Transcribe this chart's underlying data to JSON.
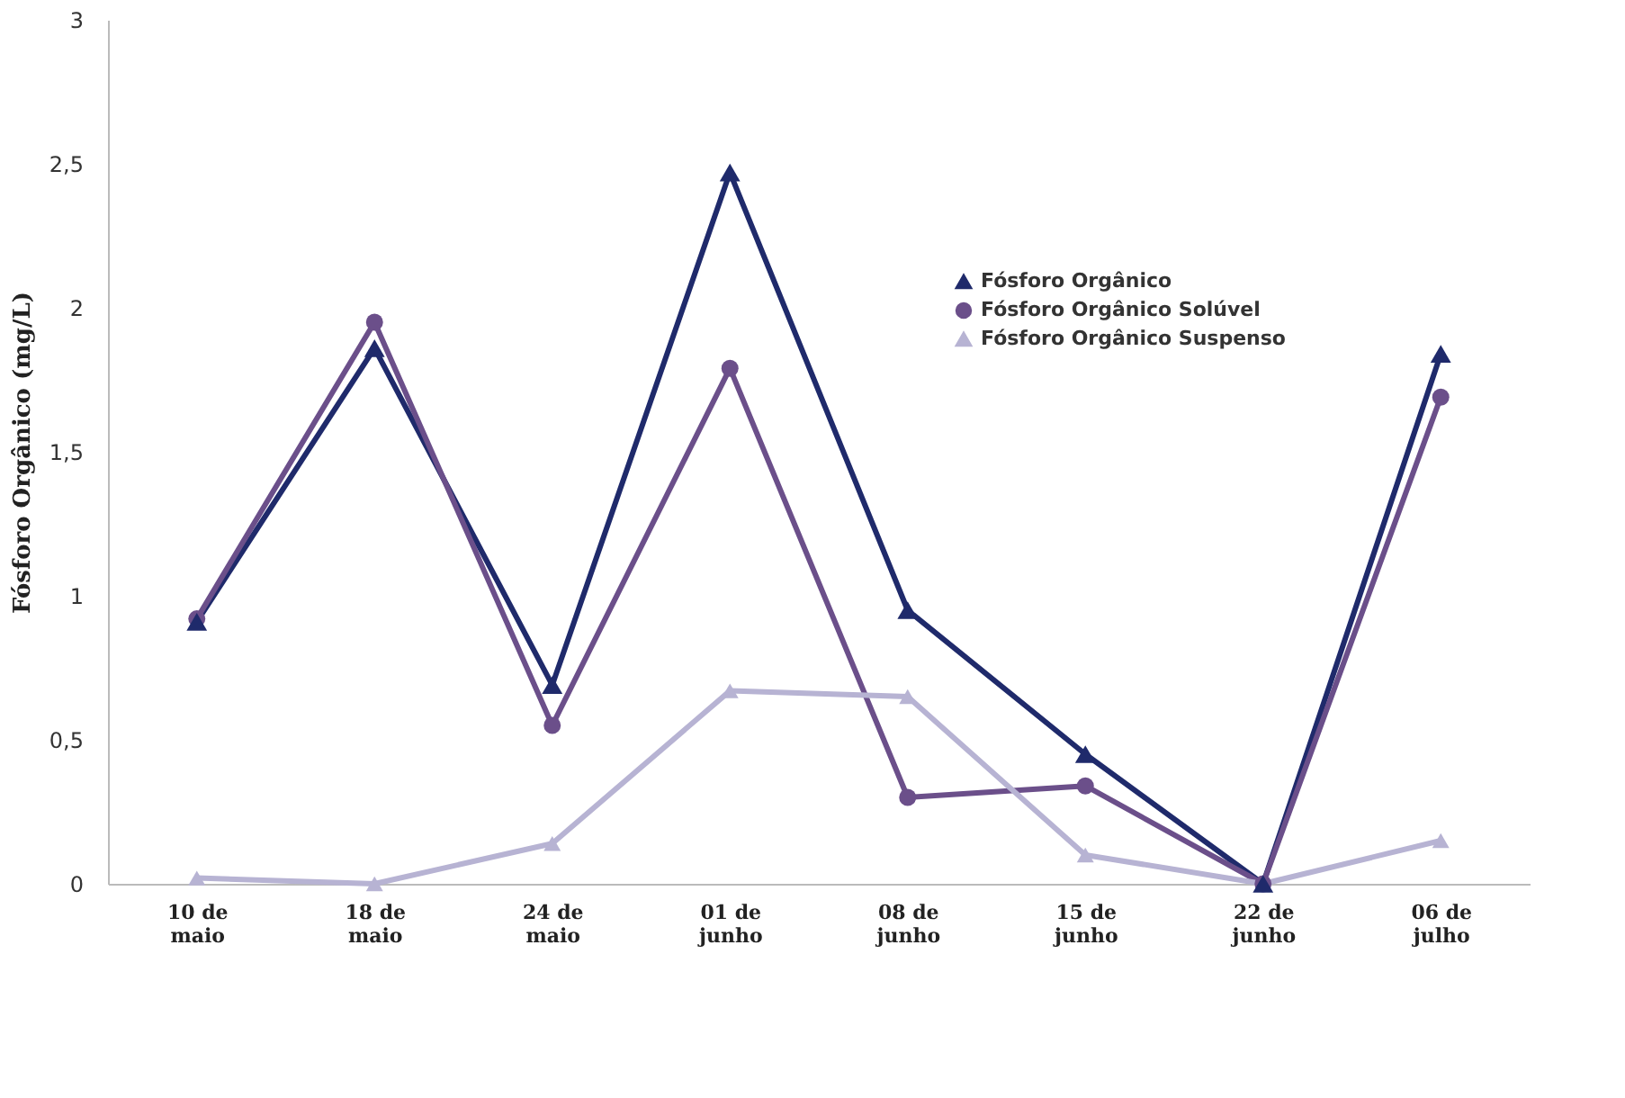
{
  "chart_data": {
    "type": "line",
    "ylabel": "Fósforo Orgânico (mg/L)",
    "categories": [
      "10 de maio",
      "18 de maio",
      "24 de maio",
      "01 de junho",
      "08 de junho",
      "15 de junho",
      "22 de junho",
      "06 de julho"
    ],
    "series": [
      {
        "name": "Fósforo Orgânico",
        "color": "#1f2a6b",
        "marker": "triangle",
        "values": [
          0.91,
          1.86,
          0.69,
          2.47,
          0.95,
          0.45,
          0.0,
          1.84
        ]
      },
      {
        "name": "Fósforo Orgânico Solúvel",
        "color": "#6b4f8a",
        "marker": "circle",
        "values": [
          0.92,
          1.95,
          0.55,
          1.79,
          0.3,
          0.34,
          0.0,
          1.69
        ]
      },
      {
        "name": "Fósforo Orgânico Suspenso",
        "color": "#b7b3d3",
        "marker": "triangle",
        "values": [
          0.02,
          0.0,
          0.14,
          0.67,
          0.65,
          0.1,
          0.0,
          0.15
        ]
      }
    ],
    "ylim": [
      0,
      3
    ],
    "yticks": [
      0,
      {
        "value": 0.5,
        "label": "0,5"
      },
      1,
      {
        "value": 1.5,
        "label": "1,5"
      },
      2,
      {
        "value": 2.5,
        "label": "2,5"
      },
      3
    ],
    "grid": false,
    "legend": "right",
    "line_style": "solid"
  }
}
